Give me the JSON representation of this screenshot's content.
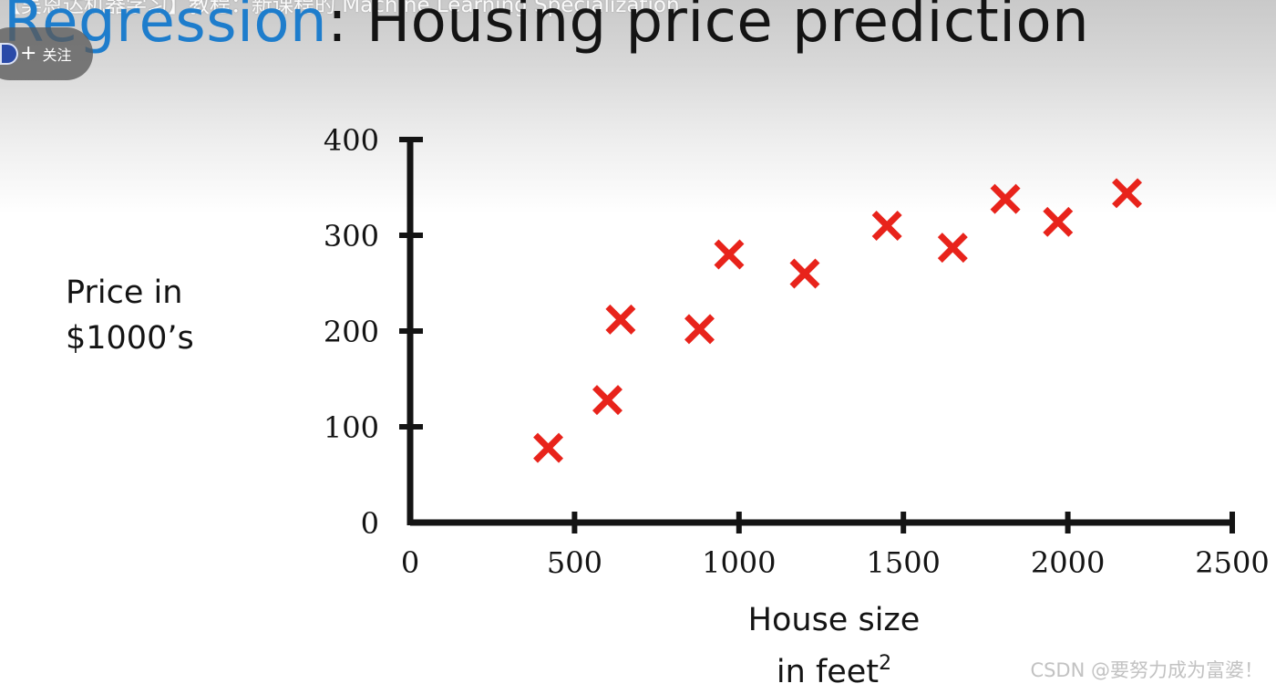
{
  "overlay": {
    "video_title": "【吴恩达机器学习】教程：新课程的 Machine Learning Specialization"
  },
  "title": {
    "prefix": "Regression",
    "rest": ": Housing price prediction"
  },
  "follow": {
    "label": "关注"
  },
  "watermark": "CSDN @要努力成为富婆！",
  "colors": {
    "title_accent": "#1e7dcc",
    "marker": "#e8231b",
    "axis": "#141414"
  },
  "chart_data": {
    "type": "scatter",
    "title": "Regression: Housing price prediction",
    "xlabel": "House size in feet²",
    "ylabel": "Price in $1000's",
    "xlabel_lines": [
      "House size",
      "in feet"
    ],
    "xlabel_sup": "2",
    "ylabel_lines": [
      "Price in",
      "$1000’s"
    ],
    "xlim": [
      0,
      2500
    ],
    "ylim": [
      0,
      400
    ],
    "x_ticks": [
      0,
      500,
      1000,
      1500,
      2000,
      2500
    ],
    "y_ticks": [
      0,
      100,
      200,
      300,
      400
    ],
    "marker": "x",
    "grid": false,
    "points": [
      {
        "x": 420,
        "y": 78
      },
      {
        "x": 600,
        "y": 128
      },
      {
        "x": 640,
        "y": 212
      },
      {
        "x": 880,
        "y": 202
      },
      {
        "x": 970,
        "y": 280
      },
      {
        "x": 1200,
        "y": 260
      },
      {
        "x": 1450,
        "y": 310
      },
      {
        "x": 1650,
        "y": 287
      },
      {
        "x": 1810,
        "y": 338
      },
      {
        "x": 1970,
        "y": 314
      },
      {
        "x": 2180,
        "y": 344
      }
    ]
  }
}
